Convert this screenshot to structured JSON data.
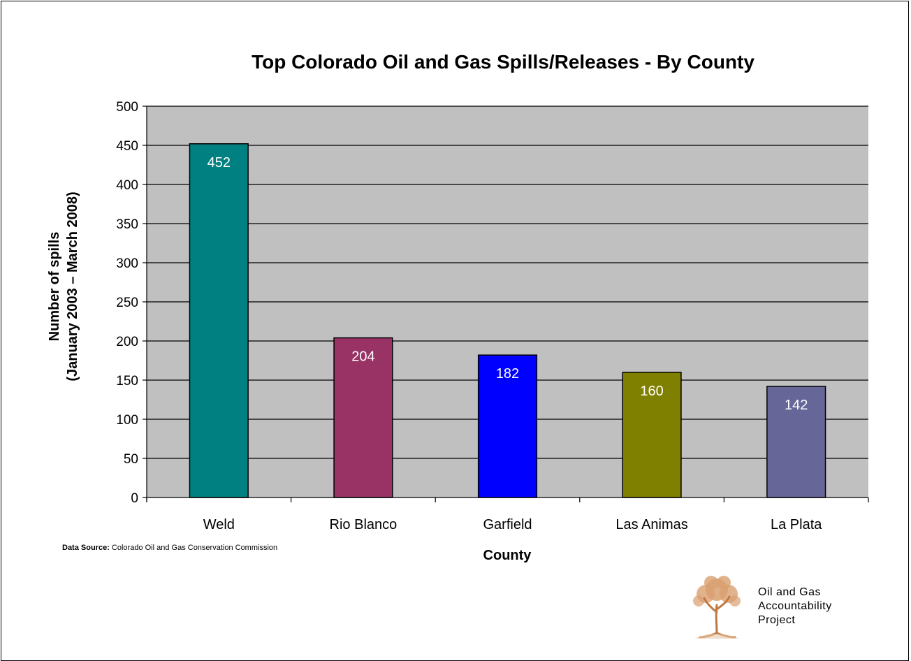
{
  "chart_data": {
    "type": "bar",
    "title": "Top Colorado Oil and Gas Spills/Releases - By County",
    "xlabel": "County",
    "ylabel_line1": "Number of spills",
    "ylabel_line2": "(January 2003 – March 2008)",
    "categories": [
      "Weld",
      "Rio Blanco",
      "Garfield",
      "Las Animas",
      "La Plata"
    ],
    "values": [
      452,
      204,
      182,
      160,
      142
    ],
    "bar_colors": [
      "#008080",
      "#993366",
      "#0000FF",
      "#808000",
      "#666699"
    ],
    "ylim": [
      0,
      500
    ],
    "yticks": [
      0,
      50,
      100,
      150,
      200,
      250,
      300,
      350,
      400,
      450,
      500
    ],
    "grid": true,
    "plot_background": "#C0C0C0"
  },
  "footer": {
    "source_label": "Data Source:",
    "source_text": " Colorado Oil and Gas Conservation Commission",
    "org_line1": "Oil and Gas",
    "org_line2": "Accountability",
    "org_line3": "Project"
  }
}
